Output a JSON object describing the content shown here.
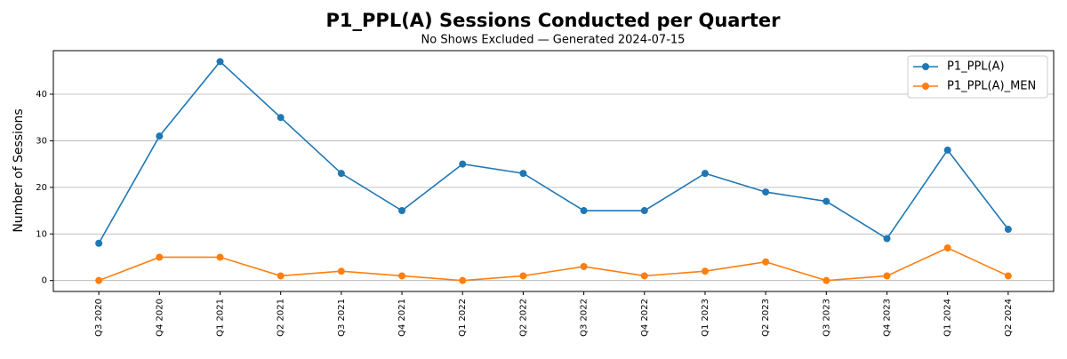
{
  "chart_data": {
    "type": "line",
    "title": "P1_PPL(A) Sessions Conducted per Quarter",
    "subtitle": "No Shows Excluded — Generated 2024-07-15",
    "y_label": "Number of Sessions",
    "categories": [
      "Q3 2020",
      "Q4 2020",
      "Q1 2021",
      "Q2 2021",
      "Q3 2021",
      "Q4 2021",
      "Q1 2022",
      "Q2 2022",
      "Q3 2022",
      "Q4 2022",
      "Q1 2023",
      "Q2 2023",
      "Q3 2023",
      "Q4 2023",
      "Q1 2024",
      "Q2 2024"
    ],
    "series": [
      {
        "name": "P1_PPL(A)",
        "color": "#1f77b4",
        "values": [
          8,
          31,
          47,
          35,
          23,
          15,
          25,
          23,
          15,
          15,
          23,
          19,
          17,
          9,
          28,
          11
        ]
      },
      {
        "name": "P1_PPL(A)_MEN",
        "color": "#ff7f0e",
        "values": [
          0,
          5,
          5,
          1,
          2,
          1,
          0,
          1,
          3,
          1,
          2,
          4,
          0,
          1,
          7,
          1
        ]
      }
    ],
    "ylim": [
      -2.35,
      49.35
    ],
    "yticks": [
      0,
      10,
      20,
      30,
      40
    ],
    "grid": true,
    "legend": "upper-right"
  }
}
